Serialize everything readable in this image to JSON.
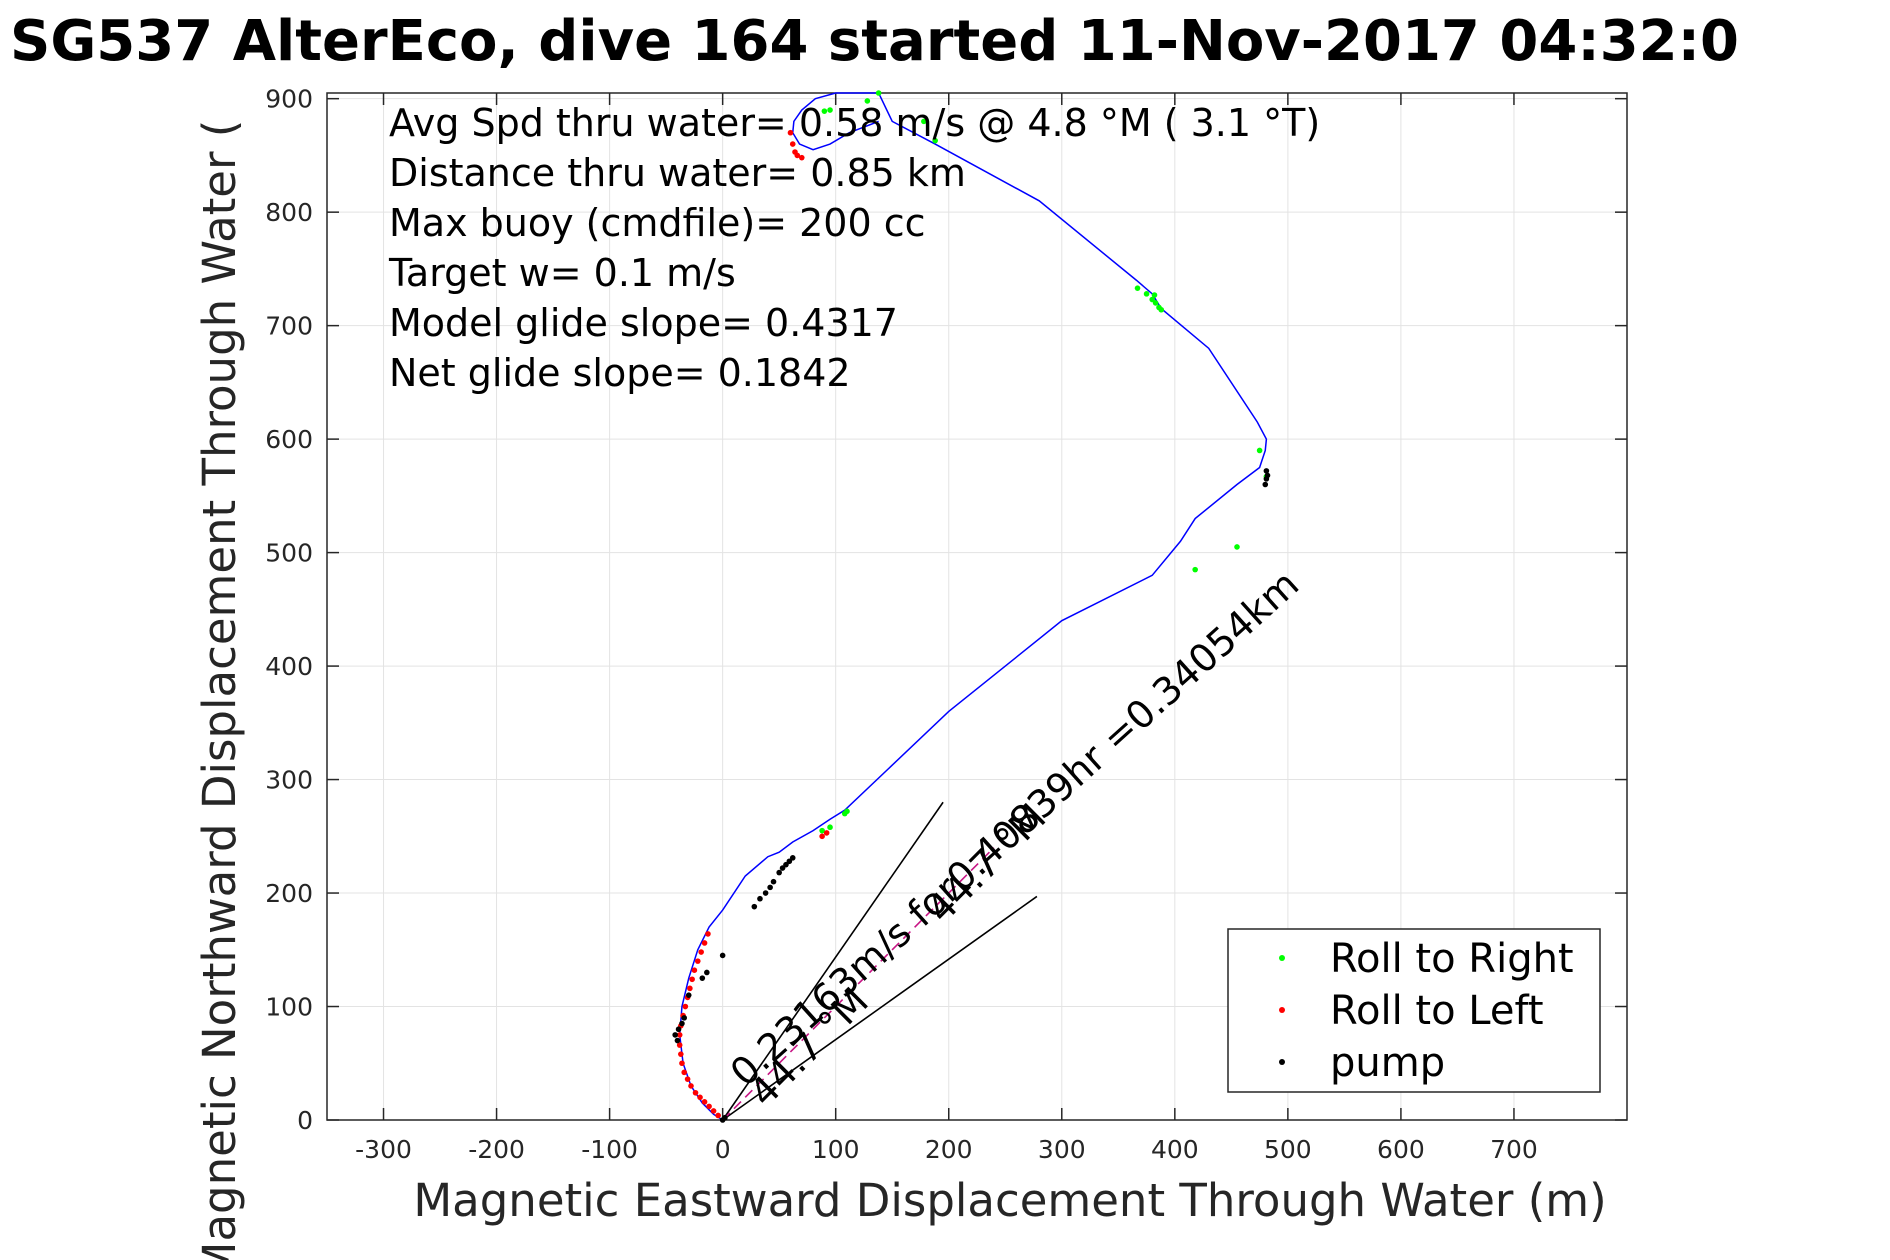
{
  "chart_data": {
    "type": "line",
    "title": "SG537 AlterEco, dive 164 started 11-Nov-2017 04:32:0",
    "xlabel": "Magnetic Eastward Displacement Through Water (m)",
    "ylabel": "Magnetic Northward Displacement Through Water (",
    "xlim": [
      -350,
      800
    ],
    "ylim": [
      0,
      905
    ],
    "xticks": [
      -300,
      -200,
      -100,
      0,
      100,
      200,
      300,
      400,
      500,
      600,
      700
    ],
    "yticks": [
      0,
      100,
      200,
      300,
      400,
      500,
      600,
      700,
      800,
      900
    ],
    "grid": true,
    "legend_position": "bottom-right",
    "annotations": [
      "Avg Spd thru water=  0.58 m/s @   4.8 °M (  3.1 °T)",
      "Distance thru water=  0.85 km",
      "Max buoy (cmdfile)= 200 cc",
      "Target w= 0.1 m/s",
      "Model glide slope= 0.4317",
      "Net glide slope= 0.1842"
    ],
    "rotated_labels": [
      "0.23163m/s for0.40839hr =0.34054km",
      "44.7 °M",
      "44.7 °M"
    ],
    "track": {
      "name": "track",
      "color": "#0000ff",
      "x": [
        0,
        -8,
        -18,
        -28,
        -35,
        -38,
        -36,
        -30,
        -22,
        -12,
        0,
        20,
        40,
        50,
        62,
        80,
        95,
        108,
        200,
        300,
        380,
        405,
        418,
        455,
        475,
        480,
        481,
        473,
        430,
        388,
        380,
        366,
        280,
        188,
        150,
        138,
        100,
        82,
        70,
        63,
        62,
        68,
        80,
        95,
        112,
        138
      ],
      "y": [
        0,
        5,
        15,
        30,
        50,
        75,
        100,
        125,
        150,
        170,
        185,
        215,
        232,
        236,
        245,
        255,
        265,
        273,
        360,
        440,
        480,
        510,
        530,
        560,
        575,
        590,
        600,
        615,
        680,
        715,
        728,
        740,
        810,
        860,
        880,
        905,
        905,
        900,
        890,
        880,
        870,
        860,
        855,
        860,
        870,
        880
      ]
    },
    "heading_lines": [
      {
        "x": [
          0,
          195
        ],
        "y": [
          0,
          280
        ],
        "color": "#000000"
      },
      {
        "x": [
          0,
          278
        ],
        "y": [
          0,
          197
        ],
        "color": "#000000"
      }
    ],
    "current_line": {
      "x": [
        0,
        240
      ],
      "y": [
        0,
        240
      ],
      "color": "#c71585"
    },
    "series": [
      {
        "name": "Roll to Right",
        "color": "#00ff00",
        "x": [
          88,
          95,
          108,
          110,
          367,
          375,
          380,
          383,
          386,
          388,
          418,
          455,
          475,
          481,
          382,
          188,
          178,
          138,
          128,
          90,
          95
        ],
        "y": [
          255,
          258,
          270,
          272,
          733,
          728,
          723,
          720,
          716,
          714,
          485,
          505,
          590,
          567,
          727,
          863,
          880,
          905,
          898,
          889,
          890
        ]
      },
      {
        "name": "Roll to Left",
        "color": "#ff0000",
        "x": [
          -4,
          -8,
          -12,
          -16,
          -20,
          -24,
          -28,
          -31,
          -34,
          -36,
          -37,
          -38,
          -38,
          -37,
          -35,
          -33,
          -31,
          -29,
          -27,
          -25,
          -22,
          -19,
          -16,
          -13,
          88,
          92,
          60,
          62,
          64,
          66,
          70
        ],
        "y": [
          4,
          8,
          12,
          16,
          20,
          24,
          30,
          36,
          42,
          50,
          58,
          66,
          75,
          83,
          92,
          100,
          108,
          116,
          124,
          132,
          140,
          148,
          156,
          164,
          250,
          253,
          870,
          860,
          853,
          850,
          848
        ]
      },
      {
        "name": "pump",
        "color": "#000000",
        "x": [
          0,
          2,
          -40,
          -42,
          -39,
          -36,
          -34,
          -30,
          -18,
          -14,
          0,
          28,
          33,
          38,
          42,
          45,
          50,
          53,
          56,
          59,
          62,
          480,
          481,
          482,
          481
        ],
        "y": [
          0,
          2,
          70,
          75,
          80,
          85,
          90,
          110,
          125,
          130,
          145,
          188,
          195,
          200,
          205,
          210,
          218,
          222,
          225,
          228,
          231,
          560,
          565,
          568,
          572
        ]
      }
    ]
  }
}
